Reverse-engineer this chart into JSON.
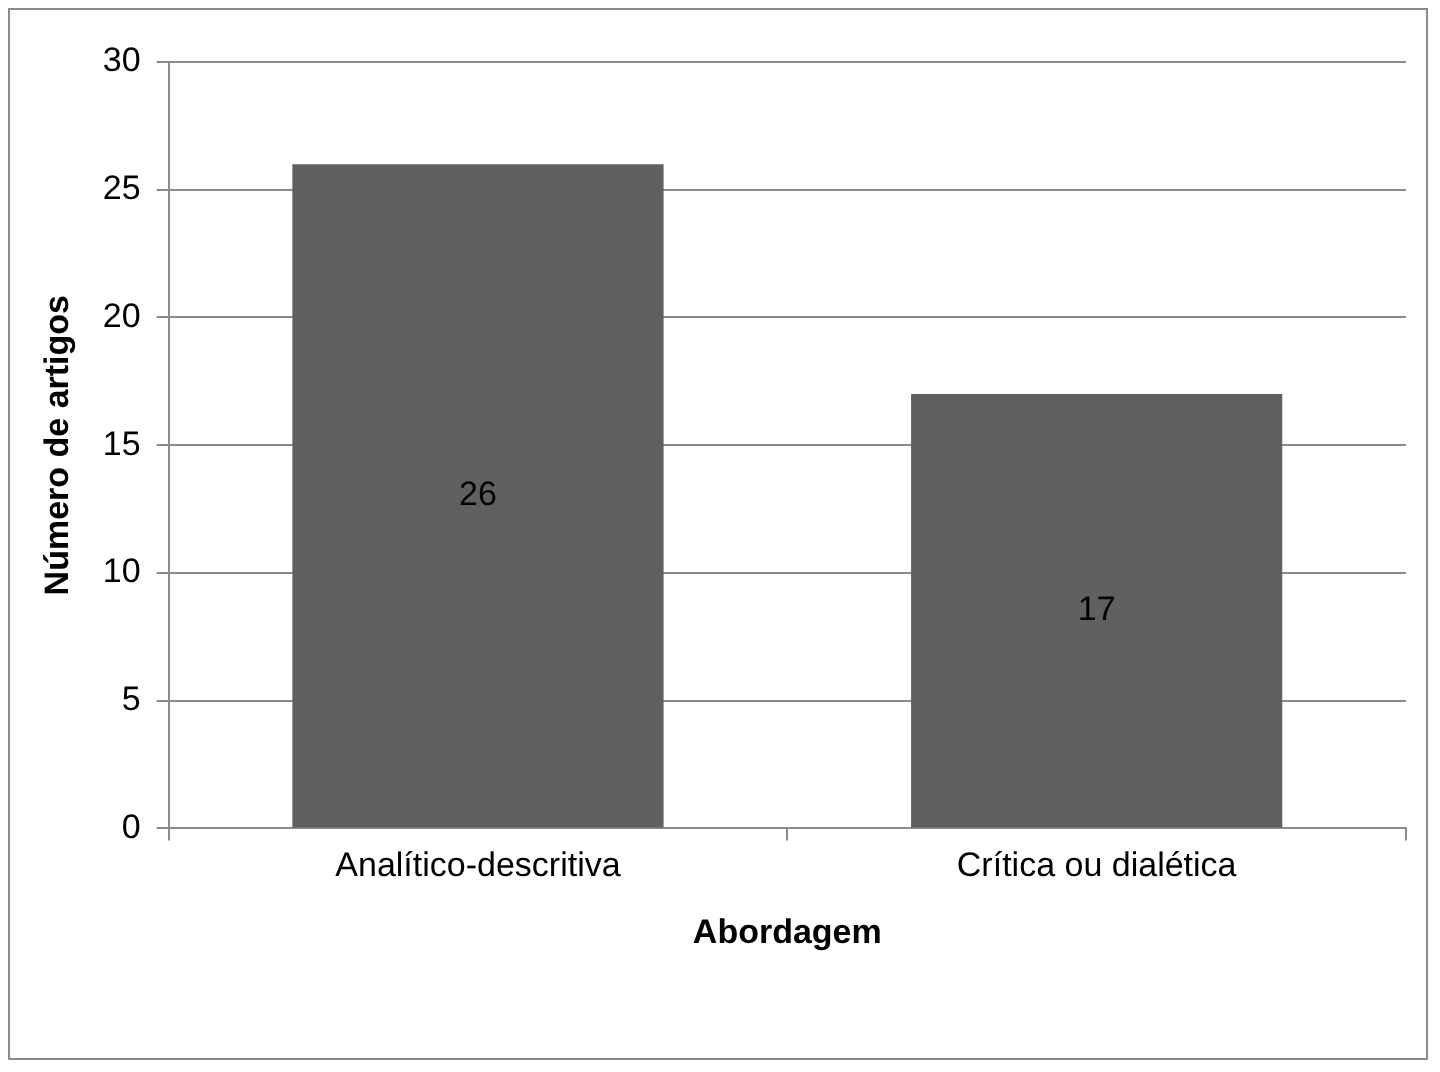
{
  "chart_data": {
    "type": "bar",
    "xlabel": "Abordagem",
    "ylabel": "Número de artigos",
    "categories": [
      "Analítico-descritiva",
      "Crítica ou dialética"
    ],
    "values": [
      26,
      17
    ],
    "color": "#606060",
    "ylim": [
      0,
      30
    ],
    "yticks": [
      0,
      5,
      10,
      15,
      20,
      25,
      30
    ],
    "grid": "y",
    "data_labels": true,
    "legend": false
  }
}
